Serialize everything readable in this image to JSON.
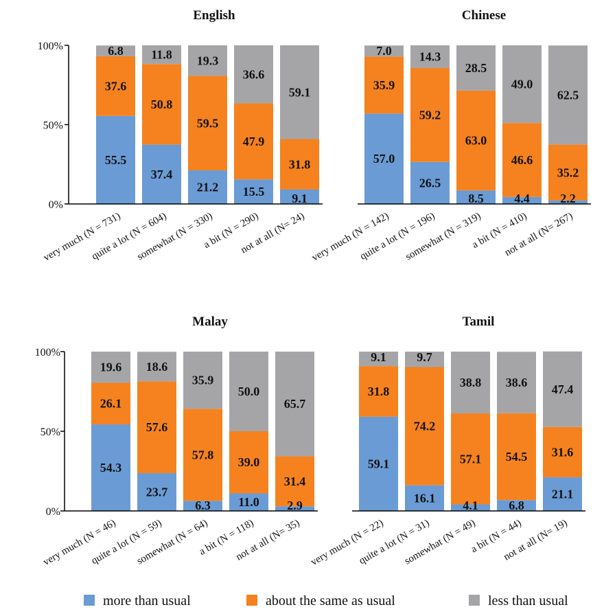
{
  "legend": [
    {
      "name": "more than usual",
      "color": "#6a9bd4"
    },
    {
      "name": "about the same as usual",
      "color": "#f5821f"
    },
    {
      "name": "less than usual",
      "color": "#a5a5a7"
    }
  ],
  "chart_data": [
    {
      "type": "bar",
      "stacked": true,
      "title": "English",
      "ylim": [
        0,
        100
      ],
      "yticks": [
        "0%",
        "50%",
        "100%"
      ],
      "categories": [
        "very much (N = 731)",
        "quite a lot (N = 604)",
        "somewhat (N = 330)",
        "a bit (N = 290)",
        "not at all (N= 24)"
      ],
      "series": [
        {
          "name": "more than usual",
          "values": [
            55.5,
            37.4,
            21.2,
            15.5,
            9.1
          ],
          "labels": [
            "55.5",
            "37.4",
            "21.2",
            "15.5",
            "9.1"
          ]
        },
        {
          "name": "about the same as usual",
          "values": [
            37.6,
            50.8,
            59.5,
            47.9,
            31.8
          ],
          "labels": [
            "37.6",
            "50.8",
            "59.5",
            "47.9",
            "31.8"
          ]
        },
        {
          "name": "less than usual",
          "values": [
            6.8,
            11.8,
            19.3,
            36.6,
            59.1
          ],
          "labels": [
            "6.8",
            "11.8",
            "19.3",
            "36.6",
            "59.1"
          ]
        }
      ]
    },
    {
      "type": "bar",
      "stacked": true,
      "title": "Chinese",
      "ylim": [
        0,
        100
      ],
      "yticks": [],
      "categories": [
        "very much (N = 142)",
        "quite a lot (N = 196)",
        "somewhat (N = 319)",
        "a bit (N = 410)",
        "not at all (N= 267)"
      ],
      "series": [
        {
          "name": "more than usual",
          "values": [
            57.0,
            26.5,
            8.5,
            4.4,
            2.2
          ],
          "labels": [
            "57.0",
            "26.5",
            "8.5",
            "4.4",
            "2.2"
          ]
        },
        {
          "name": "about the same as usual",
          "values": [
            35.9,
            59.2,
            63.0,
            46.6,
            35.2
          ],
          "labels": [
            "35.9",
            "59.2",
            "63.0",
            "46.6",
            "35.2"
          ]
        },
        {
          "name": "less than usual",
          "values": [
            7.0,
            14.3,
            28.5,
            49.0,
            62.5
          ],
          "labels": [
            "7.0",
            "14.3",
            "28.5",
            "49.0",
            "62.5"
          ]
        }
      ]
    },
    {
      "type": "bar",
      "stacked": true,
      "title": "Malay",
      "ylim": [
        0,
        100
      ],
      "yticks": [
        "0%",
        "50%",
        "100%"
      ],
      "categories": [
        "very much (N = 46)",
        "quite a lot (N = 59)",
        "somewhat (N = 64)",
        "a bit (N = 118)",
        "not at all (N= 35)"
      ],
      "series": [
        {
          "name": "more than usual",
          "values": [
            54.3,
            23.7,
            6.3,
            11.0,
            2.9
          ],
          "labels": [
            "54.3",
            "23.7",
            "6.3",
            "11.0",
            "2.9"
          ]
        },
        {
          "name": "about the same as usual",
          "values": [
            26.1,
            57.6,
            57.8,
            39.0,
            31.4
          ],
          "labels": [
            "26.1",
            "57.6",
            "57.8",
            "39.0",
            "31.4"
          ]
        },
        {
          "name": "less than usual",
          "values": [
            19.6,
            18.6,
            35.9,
            50.0,
            65.7
          ],
          "labels": [
            "19.6",
            "18.6",
            "35.9",
            "50.0",
            "65.7"
          ]
        }
      ]
    },
    {
      "type": "bar",
      "stacked": true,
      "title": "Tamil",
      "ylim": [
        0,
        100
      ],
      "yticks": [],
      "categories": [
        "very much (N = 22)",
        "quite a lot (N = 31)",
        "somewhat (N = 49)",
        "a bit (N = 44)",
        "not at all (N= 19)"
      ],
      "series": [
        {
          "name": "more than usual",
          "values": [
            59.1,
            16.1,
            4.1,
            6.8,
            21.1
          ],
          "labels": [
            "59.1",
            "16.1",
            "4.1",
            "6.8",
            "21.1"
          ]
        },
        {
          "name": "about the same as usual",
          "values": [
            31.8,
            74.2,
            57.1,
            54.5,
            31.6
          ],
          "labels": [
            "31.8",
            "74.2",
            "57.1",
            "54.5",
            "31.6"
          ]
        },
        {
          "name": "less than usual",
          "values": [
            9.1,
            9.7,
            38.8,
            38.6,
            47.4
          ],
          "labels": [
            "9.1",
            "9.7",
            "38.8",
            "38.6",
            "47.4"
          ]
        }
      ]
    }
  ]
}
